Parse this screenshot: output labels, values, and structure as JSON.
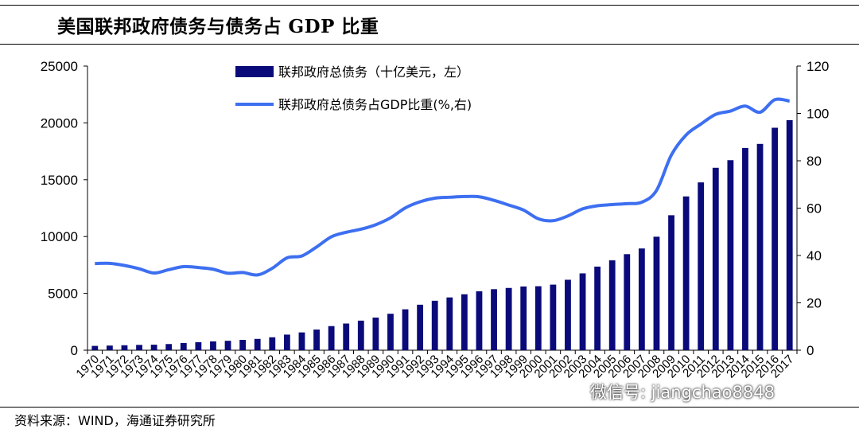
{
  "title": "美国联邦政府债务与债务占 GDP 比重",
  "source": "资料来源：WIND，海通证券研究所",
  "watermark": "微信号: jiangchao8848",
  "colors": {
    "bar": "#0a0a7a",
    "line": "#3d6ff0",
    "axis": "#000000"
  },
  "chart_data": {
    "type": "bar",
    "categories": [
      "1970",
      "1971",
      "1972",
      "1973",
      "1974",
      "1975",
      "1976",
      "1977",
      "1978",
      "1979",
      "1980",
      "1981",
      "1982",
      "1983",
      "1984",
      "1985",
      "1986",
      "1987",
      "1988",
      "1989",
      "1990",
      "1991",
      "1992",
      "1993",
      "1994",
      "1995",
      "1996",
      "1997",
      "1998",
      "1999",
      "2000",
      "2001",
      "2002",
      "2003",
      "2004",
      "2005",
      "2006",
      "2007",
      "2008",
      "2009",
      "2010",
      "2011",
      "2012",
      "2013",
      "2014",
      "2015",
      "2016",
      "2017"
    ],
    "series": [
      {
        "name": "联邦政府总债务（十亿美元，左）",
        "type": "bar",
        "axis": "left",
        "values": [
          380,
          408,
          436,
          466,
          484,
          542,
          629,
          706,
          777,
          829,
          909,
          995,
          1137,
          1372,
          1565,
          1817,
          2121,
          2346,
          2601,
          2868,
          3206,
          3598,
          4002,
          4351,
          4643,
          4921,
          5181,
          5369,
          5478,
          5606,
          5629,
          5770,
          6198,
          6760,
          7355,
          7905,
          8451,
          8951,
          9986,
          11876,
          13529,
          14764,
          16051,
          16719,
          17794,
          18151,
          19573,
          20245
        ]
      },
      {
        "name": "联邦政府总债务占GDP比重(%,右)",
        "type": "line",
        "axis": "right",
        "values": [
          36.6,
          36.7,
          35.8,
          34.4,
          32.6,
          34.0,
          35.3,
          34.9,
          34.2,
          32.5,
          32.8,
          31.8,
          34.6,
          39.0,
          39.8,
          43.6,
          47.9,
          49.8,
          51.1,
          53.0,
          55.9,
          60.1,
          62.7,
          64.2,
          64.6,
          64.9,
          64.8,
          63.3,
          61.3,
          59.2,
          55.5,
          54.7,
          56.7,
          59.7,
          61.0,
          61.5,
          61.9,
          62.5,
          67.5,
          82.4,
          90.9,
          95.5,
          99.6,
          101.0,
          103.1,
          100.5,
          105.8,
          105.2
        ]
      }
    ],
    "y_left": {
      "min": 0,
      "max": 25000,
      "ticks": [
        0,
        5000,
        10000,
        15000,
        20000,
        25000
      ]
    },
    "y_right": {
      "min": 0,
      "max": 120,
      "ticks": [
        0,
        20,
        40,
        60,
        80,
        100,
        120
      ]
    },
    "legend": {
      "position": "top-center"
    }
  }
}
